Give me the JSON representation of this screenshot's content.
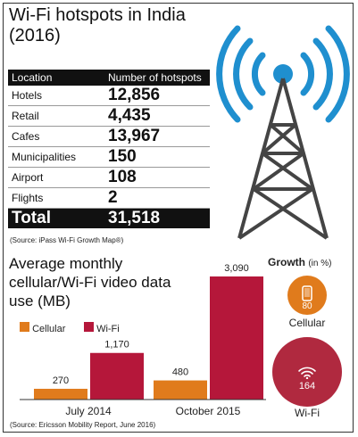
{
  "table_title": "Wi-Fi hotspots in India (2016)",
  "table_headers": [
    "Location",
    "Number of hotspots"
  ],
  "table_rows": [
    {
      "location": "Hotels",
      "value": "12,856"
    },
    {
      "location": "Retail",
      "value": "4,435"
    },
    {
      "location": "Cafes",
      "value": "13,967"
    },
    {
      "location": "Municipalities",
      "value": "150"
    },
    {
      "location": "Airport",
      "value": "108"
    },
    {
      "location": "Flights",
      "value": "2"
    }
  ],
  "table_total": {
    "location": "Total",
    "value": "31,518"
  },
  "table_source": "(Source: iPass Wi-Fi Growth Map®)",
  "growth": {
    "title": "Growth",
    "unit": "(in %)",
    "cellular_value": "80",
    "cellular_label": "Cellular",
    "wifi_value": "164",
    "wifi_label": "Wi-Fi"
  },
  "chart_source": "(Source: Ericsson Mobility Report, June 2016)",
  "colors": {
    "cellular": "#e07b1c",
    "wifi": "#b5173a",
    "wifi_circle": "#b0293f",
    "tower_wave": "#1f8fcf"
  },
  "chart_data": {
    "type": "bar",
    "title": "Average monthly cellular/Wi-Fi video data use (MB)",
    "categories": [
      "July 2014",
      "October 2015"
    ],
    "series": [
      {
        "name": "Cellular",
        "values": [
          270,
          480
        ],
        "labels": [
          "270",
          "480"
        ]
      },
      {
        "name": "Wi-Fi",
        "values": [
          1170,
          3090
        ],
        "labels": [
          "1,170",
          "3,090"
        ]
      }
    ],
    "ylim": [
      0,
      3090
    ],
    "grid": false,
    "legend": "top-left"
  }
}
